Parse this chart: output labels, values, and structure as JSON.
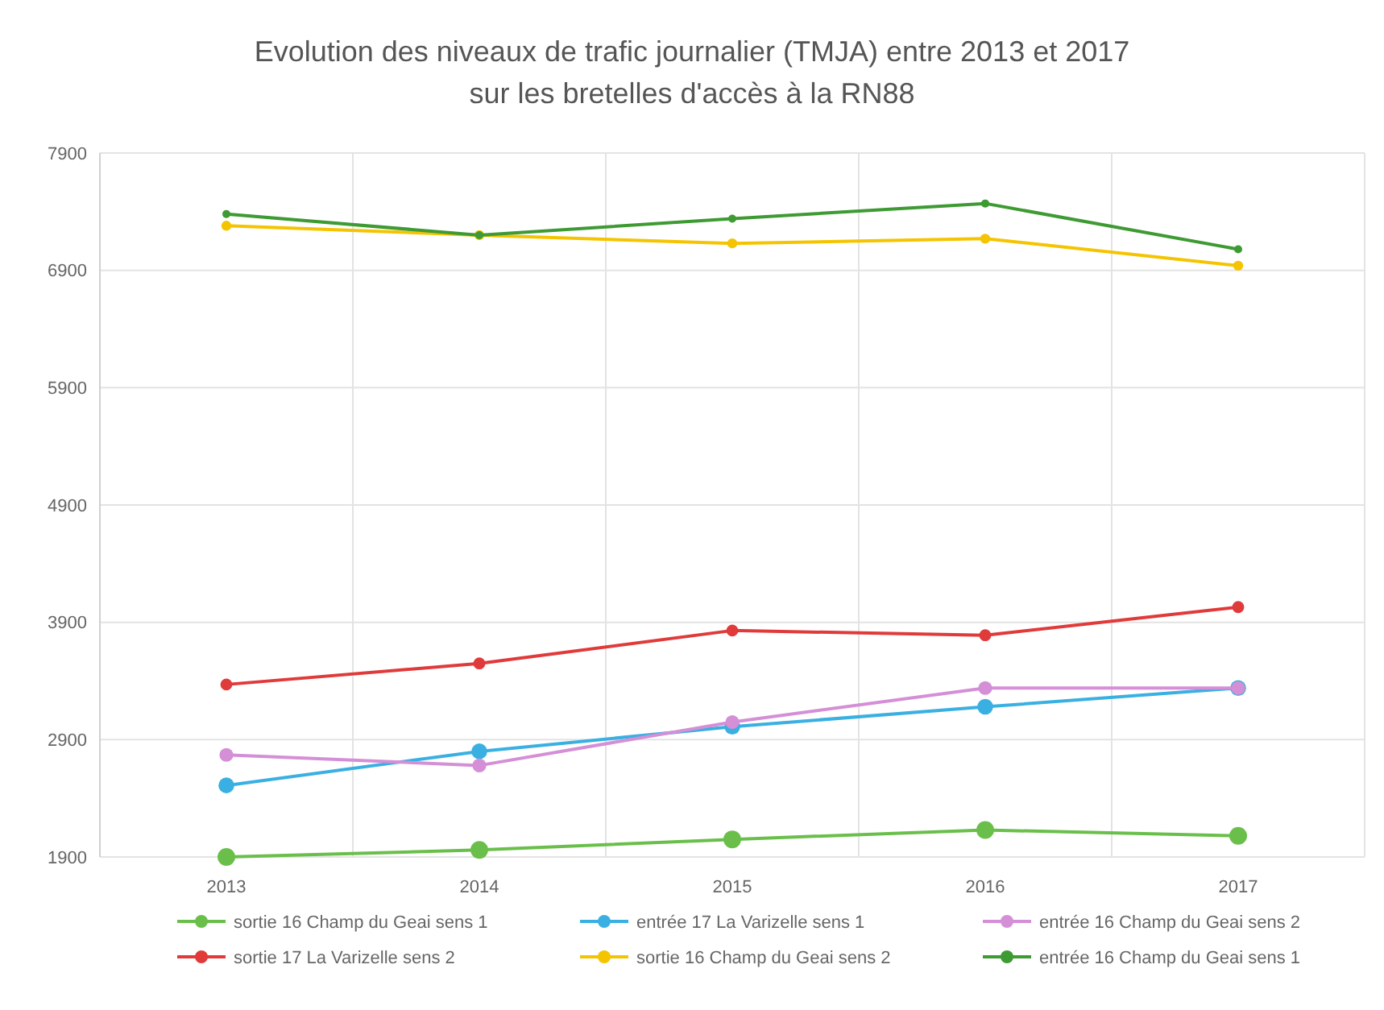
{
  "chart_data": {
    "type": "line",
    "title": "Evolution des niveaux de trafic journalier (TMJA) entre 2013 et 2017 sur les bretelles d'accès à la RN88",
    "categories": [
      "2013",
      "2014",
      "2015",
      "2016",
      "2017"
    ],
    "series": [
      {
        "name": "sortie 16 Champ du Geai sens 1",
        "color": "#6abf4b",
        "values": [
          1900,
          1960,
          2050,
          2130,
          2080
        ]
      },
      {
        "name": "entrée 17 La Varizelle sens 1",
        "color": "#3ab0e2",
        "values": [
          2510,
          2800,
          3010,
          3180,
          3340
        ]
      },
      {
        "name": "entrée 16 Champ du Geai sens 2",
        "color": "#d48fd6",
        "values": [
          2770,
          2680,
          3050,
          3340,
          3340
        ]
      },
      {
        "name": "sortie 17 La Varizelle sens 2",
        "color": "#e03a3a",
        "values": [
          3370,
          3550,
          3830,
          3790,
          4030
        ]
      },
      {
        "name": "sortie 16 Champ du Geai sens 2",
        "color": "#f5c400",
        "values": [
          7280,
          7200,
          7130,
          7170,
          6940
        ]
      },
      {
        "name": "entrée 16 Champ du Geai sens 1",
        "color": "#3e9a33",
        "values": [
          7380,
          7200,
          7340,
          7470,
          7080
        ]
      }
    ],
    "ylim": [
      1900,
      7900
    ],
    "yticks": [
      1900,
      2900,
      3900,
      4900,
      5900,
      6900,
      7900
    ],
    "grid": true,
    "legend": "bottom",
    "marker": "circle",
    "line_style": "solid"
  }
}
